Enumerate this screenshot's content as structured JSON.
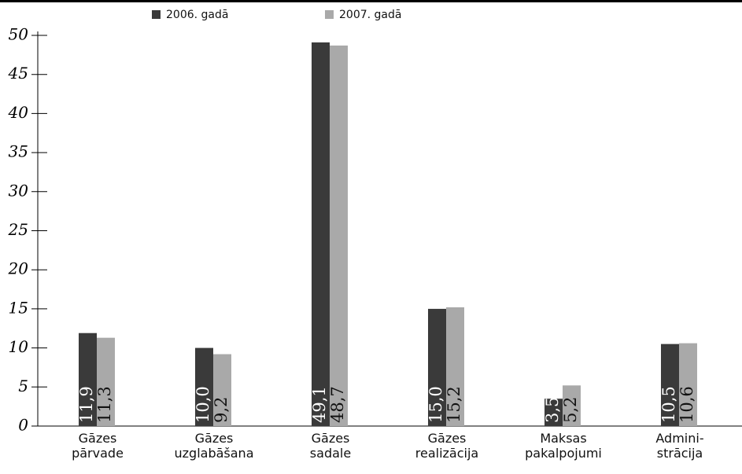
{
  "chart_data": {
    "type": "bar",
    "categories": [
      "Gāzes\npārvade",
      "Gāzes\nuzglabāšana",
      "Gāzes\nsadale",
      "Gāzes\nrealizācija",
      "Maksas\npakalpojumi",
      "Admini-\nstrācija"
    ],
    "series": [
      {
        "name": "2006. gadā",
        "color": "#3a3a3a",
        "values": [
          11.9,
          10.0,
          49.1,
          15.0,
          3.5,
          10.5
        ],
        "value_labels": [
          "11,9",
          "10,0",
          "49,1",
          "15,0",
          "3,5",
          "10,5"
        ]
      },
      {
        "name": "2007. gadā",
        "color": "#a9a9a9",
        "values": [
          11.3,
          9.2,
          48.7,
          15.2,
          5.2,
          10.6
        ],
        "value_labels": [
          "11,3",
          "9,2",
          "48,7",
          "15,2",
          "5,2",
          "10,6"
        ]
      }
    ],
    "ylim": [
      0,
      50
    ],
    "yticks": [
      0,
      5,
      10,
      15,
      20,
      25,
      30,
      35,
      40,
      45,
      50
    ],
    "grid": false
  }
}
